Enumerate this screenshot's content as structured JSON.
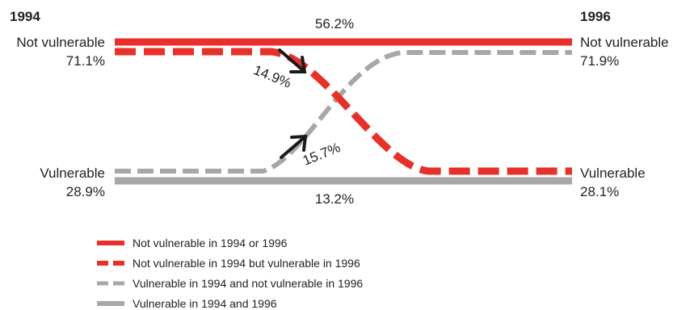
{
  "chart_data": {
    "type": "line",
    "title": "",
    "years": {
      "start": "1994",
      "end": "1996"
    },
    "states": {
      "top": {
        "label_start": "Not vulnerable",
        "value_start": "71.1%",
        "label_end": "Not vulnerable",
        "value_end": "71.9%"
      },
      "bottom": {
        "label_start": "Vulnerable",
        "value_start": "28.9%",
        "label_end": "Vulnerable",
        "value_end": "28.1%"
      }
    },
    "flows": [
      {
        "key": "stay_not_vulnerable",
        "value": 56.2,
        "label": "56.2%",
        "color": "#e8302a",
        "style": "solid"
      },
      {
        "key": "became_vulnerable",
        "value": 14.9,
        "label": "14.9%",
        "color": "#e8302a",
        "style": "dashed"
      },
      {
        "key": "became_not_vulnerable",
        "value": 15.7,
        "label": "15.7%",
        "color": "#a7a7a9",
        "style": "dashed"
      },
      {
        "key": "stay_vulnerable",
        "value": 13.2,
        "label": "13.2%",
        "color": "#a7a7a9",
        "style": "solid"
      }
    ],
    "legend": [
      {
        "label": "Not vulnerable in 1994 or 1996",
        "color": "#e8302a",
        "style": "solid"
      },
      {
        "label": "Not vulnerable in 1994 but vulnerable in 1996",
        "color": "#e8302a",
        "style": "dashed"
      },
      {
        "label": "Vulnerable in 1994 and not vulnerable in 1996",
        "color": "#a7a7a9",
        "style": "dashed"
      },
      {
        "label": "Vulnerable in 1994 and 1996",
        "color": "#a7a7a9",
        "style": "solid"
      }
    ]
  }
}
